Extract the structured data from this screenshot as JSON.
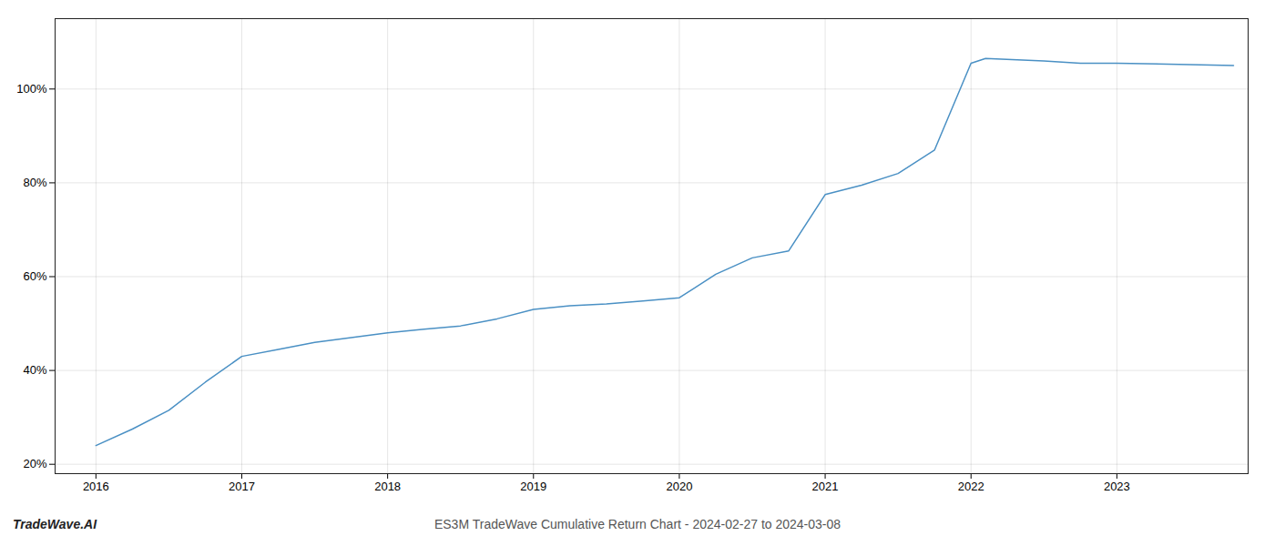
{
  "chart_data": {
    "type": "line",
    "title": "ES3M TradeWave Cumulative Return Chart - 2024-02-27 to 2024-03-08",
    "annotations": [
      "TradeWave.AI"
    ],
    "x": [
      2016.0,
      2016.25,
      2016.5,
      2016.75,
      2017.0,
      2017.25,
      2017.5,
      2017.75,
      2018.0,
      2018.25,
      2018.5,
      2018.75,
      2019.0,
      2019.25,
      2019.5,
      2019.75,
      2020.0,
      2020.25,
      2020.5,
      2020.75,
      2021.0,
      2021.25,
      2021.5,
      2021.75,
      2022.0,
      2022.1,
      2022.5,
      2022.75,
      2023.0,
      2023.5,
      2023.8
    ],
    "values": [
      24.0,
      27.5,
      31.5,
      37.5,
      43.0,
      44.5,
      46.0,
      47.0,
      48.0,
      48.8,
      49.5,
      51.0,
      53.0,
      53.8,
      54.2,
      54.8,
      55.5,
      60.5,
      64.0,
      65.5,
      77.5,
      79.5,
      82.0,
      87.0,
      105.5,
      106.5,
      106.0,
      105.5,
      105.5,
      105.2,
      105.0
    ],
    "color": "#4a90c4",
    "xlim": [
      2015.72,
      2023.9
    ],
    "ylim": [
      18,
      115
    ],
    "xticks": [
      2016,
      2017,
      2018,
      2019,
      2020,
      2021,
      2022,
      2023
    ],
    "yticks": [
      {
        "value": 20,
        "label": "20%"
      },
      {
        "value": 40,
        "label": "40%"
      },
      {
        "value": 60,
        "label": "60%"
      },
      {
        "value": 80,
        "label": "80%"
      },
      {
        "value": 100,
        "label": "100%"
      }
    ],
    "grid": true
  }
}
